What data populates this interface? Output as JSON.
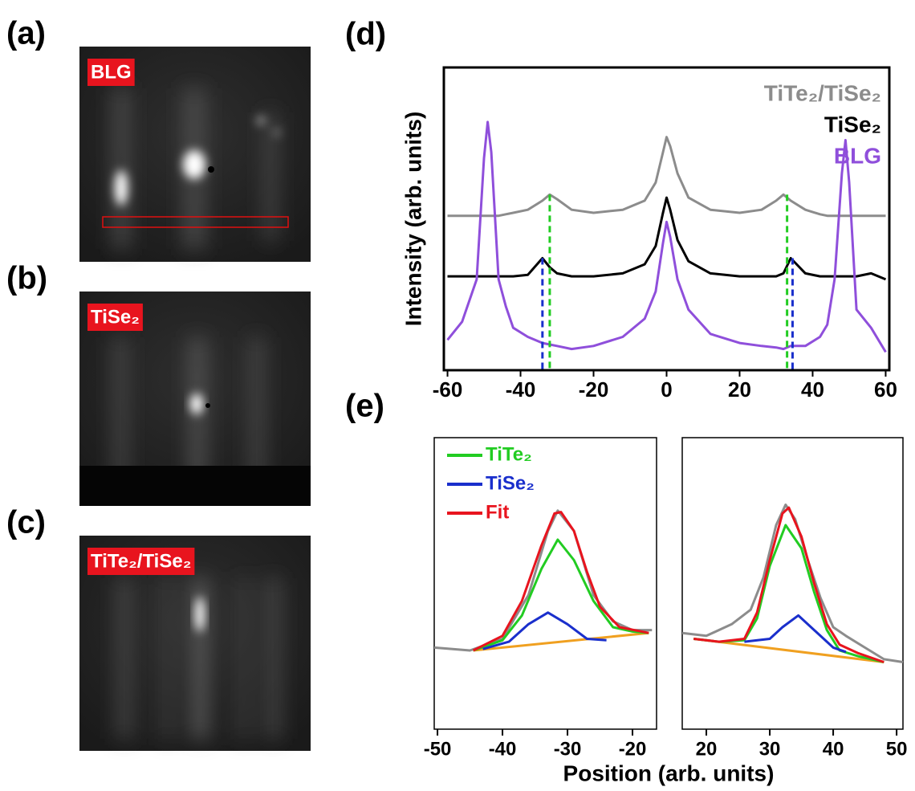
{
  "panels": [
    {
      "label": "(a)",
      "tag": "BLG"
    },
    {
      "label": "(b)",
      "tag": "TiSe₂"
    },
    {
      "label": "(c)",
      "tag": "TiTe₂/TiSe₂"
    }
  ],
  "chart_data": [
    {
      "type": "line",
      "panel": "(d)",
      "ylabel": "Intensity (arb. units)",
      "xlim": [
        -61,
        61
      ],
      "ylim": [
        0,
        100
      ],
      "xticks": [
        -60,
        -40,
        -20,
        0,
        20,
        40,
        60
      ],
      "legend": "upper right",
      "legend_swatches": false,
      "x": [
        -60,
        -56,
        -52,
        -50,
        -49,
        -48,
        -46,
        -44,
        -42,
        -38,
        -34,
        -32,
        -30,
        -26,
        -20,
        -12,
        -6,
        -3,
        -1,
        0,
        1,
        3,
        6,
        12,
        20,
        26,
        30,
        32,
        34,
        38,
        42,
        44,
        46,
        48,
        49,
        50,
        52,
        56,
        60
      ],
      "series": [
        {
          "name": "TiTe₂/TiSe₂",
          "color": "#8c8c8c",
          "values": [
            51,
            51,
            51,
            51,
            51,
            51,
            51,
            51.5,
            52,
            53,
            56,
            58,
            56.5,
            53,
            52,
            53,
            56,
            62,
            72,
            77,
            74,
            65,
            57,
            53,
            52,
            53,
            56,
            58,
            56,
            53,
            51.5,
            51,
            51,
            51,
            51,
            51,
            51,
            51,
            51
          ]
        },
        {
          "name": "TiSe₂",
          "color": "#000000",
          "values": [
            31,
            31,
            31,
            31,
            31,
            31,
            31,
            31,
            31,
            31.5,
            37,
            34,
            32,
            31,
            31,
            32,
            35,
            41,
            52,
            57,
            53,
            43,
            36,
            32,
            31,
            31,
            31,
            32,
            37,
            32,
            31,
            31,
            31,
            31,
            31,
            31,
            31,
            32,
            30
          ]
        },
        {
          "name": "BLG",
          "color": "#8f4fdb",
          "values": [
            10,
            16,
            30,
            70,
            82,
            72,
            30,
            21,
            14,
            11,
            9,
            8.5,
            8,
            7,
            8,
            11,
            17,
            26,
            42,
            49,
            44,
            30,
            20,
            12,
            9,
            8,
            7.5,
            7,
            8,
            8,
            11,
            15,
            30,
            65,
            76,
            62,
            20,
            14,
            6
          ]
        }
      ],
      "vlines": [
        {
          "x": -32,
          "y": 58,
          "color": "#22cc22"
        },
        {
          "x": 33,
          "y": 58,
          "color": "#22cc22"
        },
        {
          "x": -34,
          "y": 37,
          "color": "#1a2fcc"
        },
        {
          "x": 34.5,
          "y": 37,
          "color": "#1a2fcc"
        }
      ]
    },
    {
      "type": "line",
      "panel": "(e)",
      "xlim": [
        -50.5,
        -16.3
      ],
      "ylim": [
        0,
        100
      ],
      "xticks": [
        -50,
        -40,
        -30,
        -20
      ],
      "legend": "upper left",
      "legend_swatches": true,
      "series": [
        {
          "color": "#8c8c8c",
          "x": [
            -50.5,
            -45,
            -40,
            -36,
            -33,
            -31.5,
            -29,
            -26,
            -23,
            -20,
            -17
          ],
          "values": [
            28,
            27,
            31,
            46,
            68,
            75,
            68,
            46,
            37,
            34,
            34
          ]
        },
        {
          "color": "#f0a020",
          "x": [
            -44.5,
            -17.5
          ],
          "values": [
            27,
            33
          ]
        },
        {
          "name": "TiTe₂",
          "color": "#22cc22",
          "x": [
            -44.5,
            -40,
            -37,
            -34,
            -31.5,
            -29,
            -26,
            -23,
            -20,
            -17.5
          ],
          "values": [
            27,
            30.5,
            39,
            55,
            65,
            58,
            44,
            35,
            33.5,
            33
          ]
        },
        {
          "name": "TiSe₂",
          "color": "#1a2fcc",
          "x": [
            -43,
            -39,
            -36,
            -33,
            -30,
            -27,
            -24
          ],
          "values": [
            27.5,
            30,
            36,
            40,
            36,
            31,
            30.5
          ]
        },
        {
          "name": "Fit",
          "color": "#e8141e",
          "x": [
            -44.5,
            -40,
            -37,
            -34,
            -32,
            -31,
            -29,
            -27,
            -25,
            -22,
            -17.5
          ],
          "values": [
            27,
            32,
            44,
            63,
            74,
            74.5,
            68,
            54,
            42,
            35,
            33
          ]
        }
      ]
    },
    {
      "type": "line",
      "xlabel": "Position (arb. units)",
      "xlim": [
        16.2,
        51
      ],
      "ylim": [
        0,
        100
      ],
      "xticks": [
        20,
        30,
        40,
        50
      ],
      "series": [
        {
          "color": "#8c8c8c",
          "x": [
            16.2,
            20,
            24,
            27,
            29,
            31,
            32.5,
            34,
            36,
            38,
            40,
            42,
            45,
            48,
            51
          ],
          "values": [
            33,
            32,
            36,
            41,
            52,
            70,
            77,
            72,
            58,
            45,
            35,
            32,
            28,
            24,
            23
          ]
        },
        {
          "color": "#f0a020",
          "x": [
            18,
            48
          ],
          "values": [
            31,
            23
          ]
        },
        {
          "color": "#22cc22",
          "x": [
            18,
            22,
            26,
            28,
            30,
            32.5,
            35,
            37,
            39,
            41,
            44,
            48
          ],
          "values": [
            31,
            30,
            30.5,
            38,
            56,
            70,
            62,
            47,
            34,
            27,
            25,
            23
          ]
        },
        {
          "color": "#1a2fcc",
          "x": [
            26,
            30,
            32,
            34.5,
            37,
            40,
            42
          ],
          "values": [
            30,
            31,
            35,
            39,
            34,
            28,
            26.5
          ]
        },
        {
          "color": "#e8141e",
          "x": [
            18,
            22,
            26,
            28,
            30,
            32,
            33,
            35,
            37,
            39,
            41,
            44,
            48
          ],
          "values": [
            31,
            30,
            31,
            40,
            58,
            74,
            76,
            66,
            50,
            36,
            29,
            26,
            23
          ]
        }
      ]
    }
  ]
}
